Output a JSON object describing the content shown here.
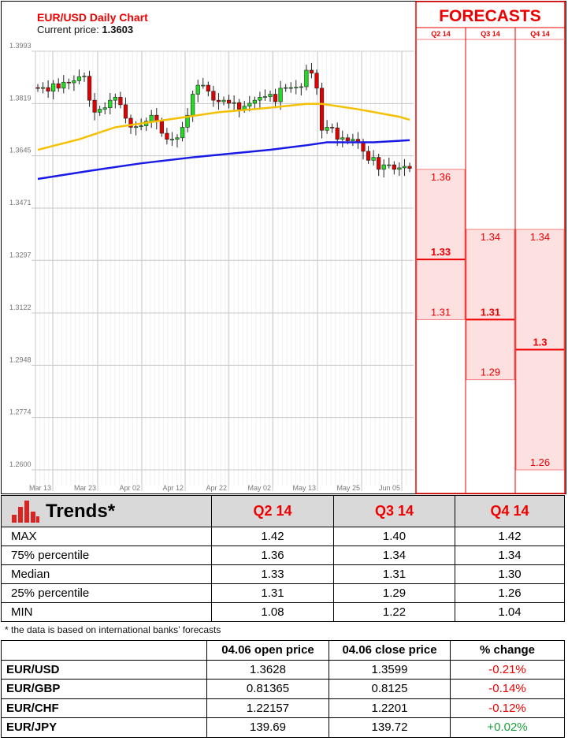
{
  "chart_data": {
    "type": "candlestick",
    "title": "EUR/USD Daily Chart",
    "current_price_label": "Current price:",
    "current_price": "1.3603",
    "y_ticks": [
      "1.3993",
      "1.3819",
      "1.3645",
      "1.3471",
      "1.3297",
      "1.3122",
      "1.2948",
      "1.2774",
      "1.2600"
    ],
    "ylim": [
      1.26,
      1.3993
    ],
    "x_ticks": [
      "Mar 13",
      "Mar 23",
      "Apr 02",
      "Apr 12",
      "Apr 22",
      "May 02",
      "May 13",
      "May 25",
      "Jun 05"
    ],
    "grid": true,
    "close": [
      1.387,
      1.3872,
      1.386,
      1.3885,
      1.387,
      1.389,
      1.3888,
      1.3895,
      1.3908,
      1.391,
      1.383,
      1.379,
      1.38,
      1.3805,
      1.383,
      1.384,
      1.3815,
      1.377,
      1.374,
      1.3742,
      1.3745,
      1.376,
      1.378,
      1.376,
      1.372,
      1.37,
      1.37,
      1.3705,
      1.374,
      1.378,
      1.385,
      1.388,
      1.388,
      1.386,
      1.383,
      1.3825,
      1.383,
      1.382,
      1.3822,
      1.38,
      1.381,
      1.382,
      1.383,
      1.384,
      1.3842,
      1.385,
      1.3825,
      1.387,
      1.3872,
      1.3872,
      1.3873,
      1.3875,
      1.393,
      1.392,
      1.387,
      1.373,
      1.374,
      1.3738,
      1.37,
      1.3705,
      1.3695,
      1.37,
      1.369,
      1.366,
      1.363,
      1.364,
      1.36,
      1.3615,
      1.3615,
      1.36,
      1.3605,
      1.361,
      1.3603
    ],
    "moving_averages": [
      {
        "color": "#f5c000",
        "points": [
          [
            0,
            1.3665
          ],
          [
            8,
            1.37
          ],
          [
            15,
            1.374
          ],
          [
            25,
            1.3765
          ],
          [
            35,
            1.379
          ],
          [
            45,
            1.3805
          ],
          [
            52,
            1.3818
          ],
          [
            55,
            1.3818
          ],
          [
            62,
            1.38
          ],
          [
            70,
            1.3775
          ],
          [
            72,
            1.3765
          ]
        ]
      },
      {
        "color": "#1a1ae6",
        "points": [
          [
            0,
            1.3568
          ],
          [
            10,
            1.3595
          ],
          [
            20,
            1.362
          ],
          [
            30,
            1.364
          ],
          [
            45,
            1.3665
          ],
          [
            52,
            1.368
          ],
          [
            56,
            1.369
          ],
          [
            65,
            1.369
          ],
          [
            72,
            1.3697
          ]
        ]
      }
    ],
    "up_color": "#22dd22",
    "down_color": "#e00000"
  },
  "forecasts": {
    "title": "FORECASTS",
    "columns": [
      {
        "label": "Q2 14",
        "p75": "1.36",
        "median": "1.33",
        "p25": "1.31"
      },
      {
        "label": "Q3 14",
        "p75": "1.34",
        "median": "1.31",
        "p25": "1.29"
      },
      {
        "label": "Q4 14",
        "p75": "1.34",
        "median": "1.3",
        "p25": "1.26"
      }
    ]
  },
  "trends": {
    "title": "Trends*",
    "headers": [
      "Q2 14",
      "Q3 14",
      "Q4 14"
    ],
    "rows": [
      {
        "label": "MAX",
        "values": [
          "1.42",
          "1.40",
          "1.42"
        ]
      },
      {
        "label": "75% percentile",
        "values": [
          "1.36",
          "1.34",
          "1.34"
        ]
      },
      {
        "label": "Median",
        "values": [
          "1.33",
          "1.31",
          "1.30"
        ]
      },
      {
        "label": "25% percentile",
        "values": [
          "1.31",
          "1.29",
          "1.26"
        ]
      },
      {
        "label": "MIN",
        "values": [
          "1.08",
          "1.22",
          "1.04"
        ]
      }
    ],
    "note": "* the data is based on international banks’ forecasts"
  },
  "prices": {
    "headers": [
      "",
      "04.06 open price",
      "04.06 close price",
      "% change"
    ],
    "rows": [
      {
        "pair": "EUR/USD",
        "open": "1.3628",
        "close": "1.3599",
        "change": "-0.21%",
        "dir": "neg"
      },
      {
        "pair": "EUR/GBP",
        "open": "0.81365",
        "close": "0.8125",
        "change": "-0.14%",
        "dir": "neg"
      },
      {
        "pair": "EUR/CHF",
        "open": "1.22157",
        "close": "1.2201",
        "change": "-0.12%",
        "dir": "neg"
      },
      {
        "pair": "EUR/JPY",
        "open": "139.69",
        "close": "139.72",
        "change": "+0.02%",
        "dir": "pos"
      }
    ]
  }
}
